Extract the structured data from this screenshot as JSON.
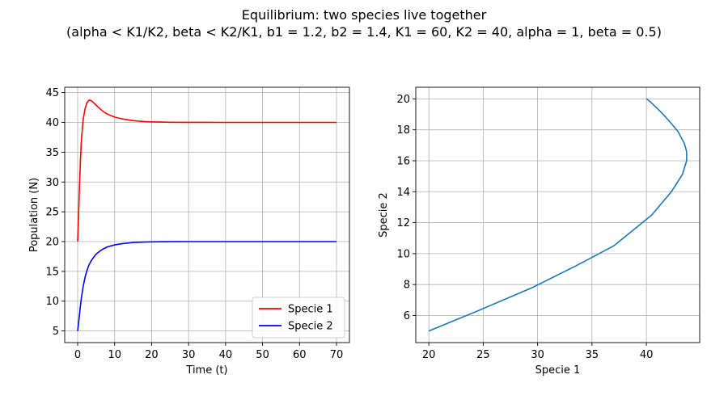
{
  "figure": {
    "title_line1": "Equilibrium: two species live together",
    "title_line2": "(alpha < K1/K2, beta < K2/K1, b1 = 1.2, b2 = 1.4, K1 = 60, K2 = 40, alpha = 1, beta = 0.5)"
  },
  "chart_data": [
    {
      "type": "line",
      "xlabel": "Time (t)",
      "ylabel": "Population (N)",
      "xlim": [
        -3.5,
        73.5
      ],
      "ylim": [
        3.05,
        45.9
      ],
      "xticks": [
        0,
        10,
        20,
        30,
        40,
        50,
        60,
        70
      ],
      "yticks": [
        5,
        10,
        15,
        20,
        25,
        30,
        35,
        40,
        45
      ],
      "grid": true,
      "legend": "lower-right",
      "series": [
        {
          "name": "Specie 1",
          "color": "#ff0000",
          "x": [
            0,
            0.25,
            0.5,
            0.75,
            1,
            1.5,
            2,
            2.5,
            3,
            3.5,
            4,
            5,
            6,
            7,
            8,
            10,
            12,
            15,
            18,
            20,
            25,
            30,
            40,
            50,
            60,
            70
          ],
          "y": [
            20,
            24.5,
            29.5,
            33.5,
            37,
            40.5,
            42.3,
            43.3,
            43.7,
            43.7,
            43.5,
            42.9,
            42.3,
            41.8,
            41.4,
            40.9,
            40.6,
            40.3,
            40.15,
            40.1,
            40.03,
            40.01,
            40,
            40,
            40,
            40
          ]
        },
        {
          "name": "Specie 2",
          "color": "#0000ff",
          "x": [
            0,
            0.25,
            0.5,
            0.75,
            1,
            1.5,
            2,
            2.5,
            3,
            3.5,
            4,
            5,
            6,
            7,
            8,
            10,
            12,
            15,
            18,
            20,
            25,
            30,
            40,
            50,
            60,
            70
          ],
          "y": [
            5,
            6.3,
            7.8,
            9.2,
            10.5,
            12.5,
            14,
            15.1,
            16,
            16.6,
            17.1,
            17.9,
            18.4,
            18.8,
            19.1,
            19.45,
            19.65,
            19.85,
            19.93,
            19.96,
            19.99,
            20,
            20,
            20,
            20,
            20
          ]
        }
      ]
    },
    {
      "type": "line",
      "xlabel": "Specie 1",
      "ylabel": "Specie 2",
      "xlim": [
        18.8,
        44.9
      ],
      "ylim": [
        4.25,
        20.75
      ],
      "xticks": [
        20,
        25,
        30,
        35,
        40
      ],
      "yticks": [
        6,
        8,
        10,
        12,
        14,
        16,
        18,
        20
      ],
      "grid": true,
      "series": [
        {
          "color": "#1f77b4",
          "x": [
            20,
            24.5,
            29.5,
            33.5,
            37,
            40.5,
            42.3,
            43.3,
            43.7,
            43.7,
            43.5,
            42.9,
            42.3,
            41.8,
            41.4,
            40.9,
            40.6,
            40.3,
            40.15,
            40.1,
            40.03,
            40.01,
            40
          ],
          "y": [
            5,
            6.3,
            7.8,
            9.2,
            10.5,
            12.5,
            14,
            15.1,
            16,
            16.6,
            17.1,
            17.9,
            18.4,
            18.8,
            19.1,
            19.45,
            19.65,
            19.85,
            19.93,
            19.96,
            19.99,
            20,
            20
          ]
        }
      ]
    }
  ]
}
